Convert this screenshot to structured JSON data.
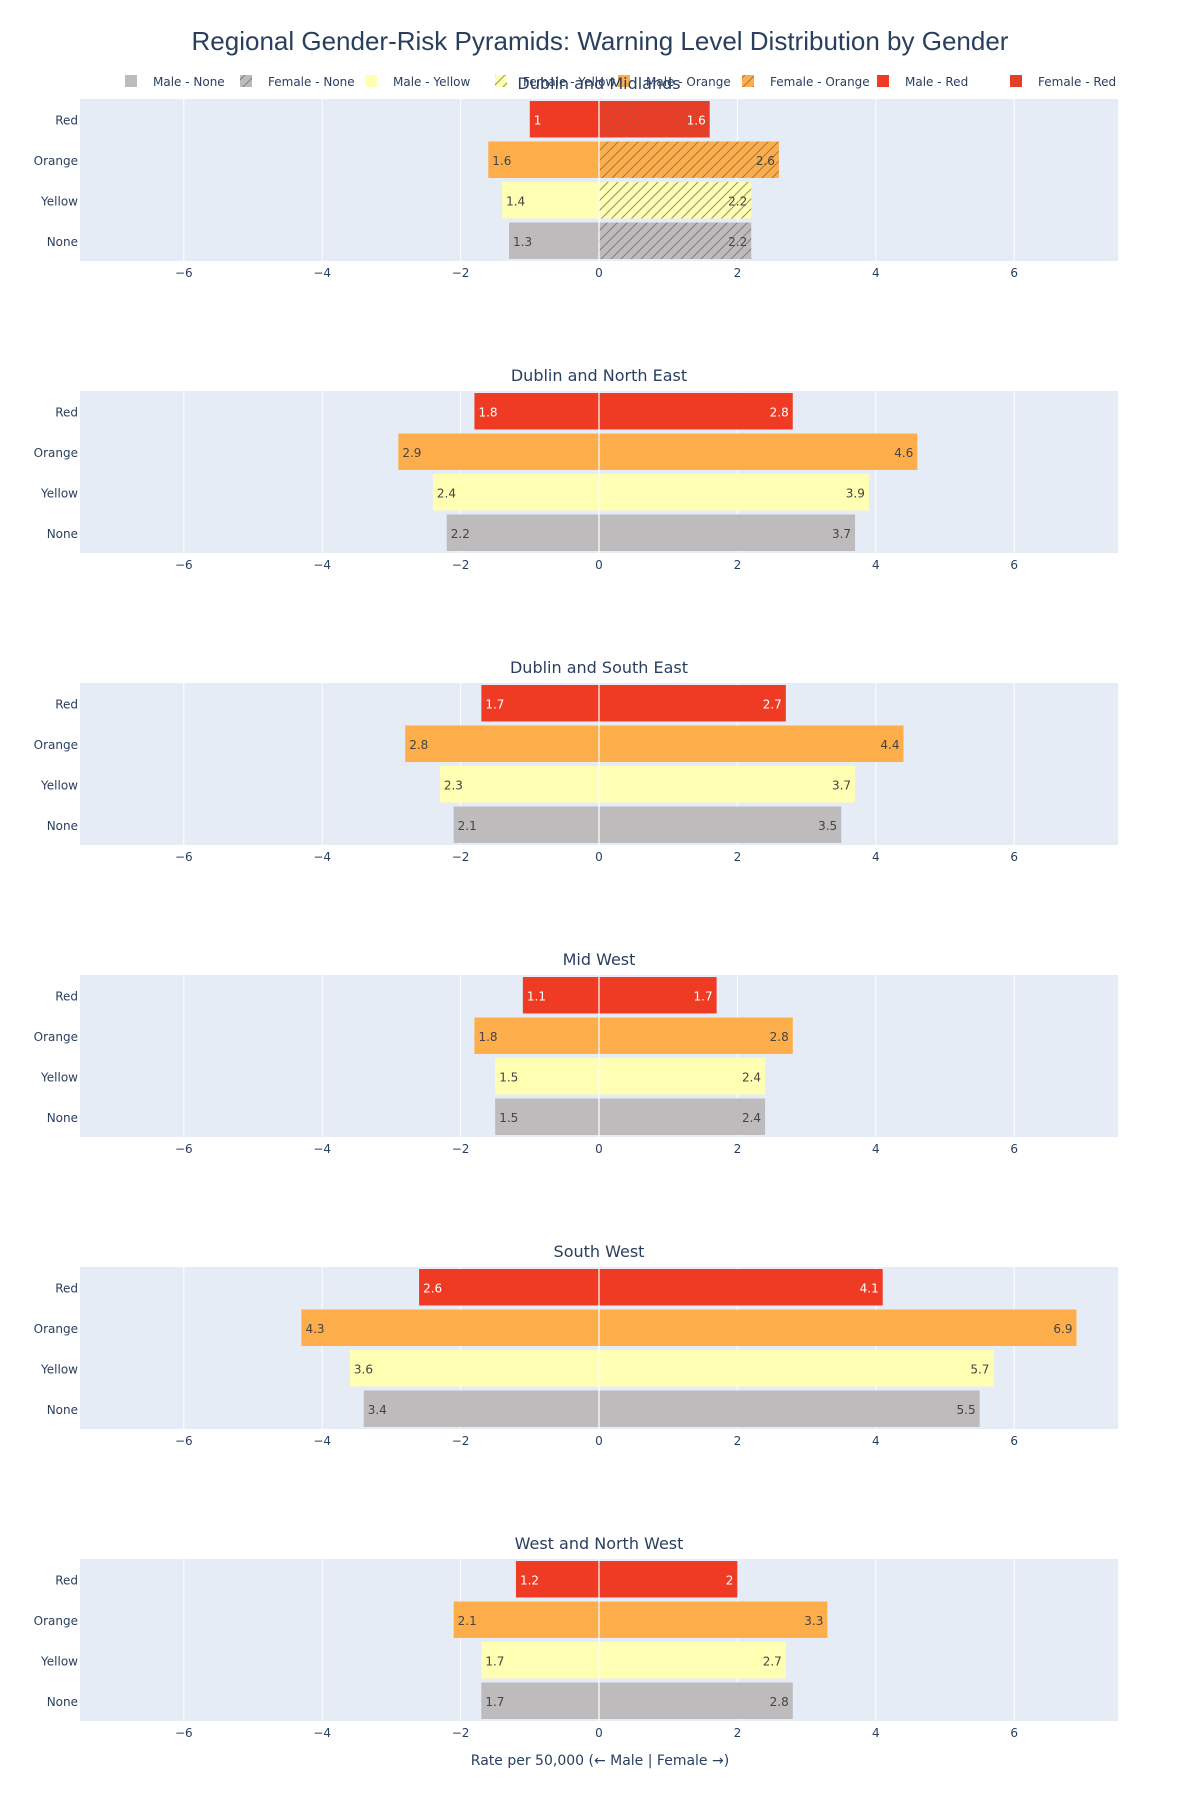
{
  "chart_data": {
    "type": "bar",
    "orientation": "horizontal-pyramid",
    "title": "Regional Gender-Risk Pyramids: Warning Level Distribution by Gender",
    "xlabel": "Rate per 50,000 (← Male | Female →)",
    "xlim": [
      -7.5,
      7.5
    ],
    "xticks": [
      -6,
      -4,
      -2,
      0,
      2,
      4,
      6
    ],
    "xtick_labels": [
      "−6",
      "−4",
      "−2",
      "0",
      "2",
      "4",
      "6"
    ],
    "grid": true,
    "legend_placement": "top",
    "categories": [
      "Red",
      "Orange",
      "Yellow",
      "None"
    ],
    "colors": {
      "None": "#bdbbbb",
      "Yellow": "#ffffb3",
      "Orange": "#fdae4b",
      "Red": "#ef3b23",
      "plot_bg": "#e5ecf6",
      "text": "#2a3f5f"
    },
    "legend": [
      {
        "name": "Male - None",
        "level": "None",
        "gender": "male"
      },
      {
        "name": "Female - None",
        "level": "None",
        "gender": "female"
      },
      {
        "name": "Male - Yellow",
        "level": "Yellow",
        "gender": "male"
      },
      {
        "name": "Female - Yellow",
        "level": "Yellow",
        "gender": "female"
      },
      {
        "name": "Male - Orange",
        "level": "Orange",
        "gender": "male"
      },
      {
        "name": "Female - Orange",
        "level": "Orange",
        "gender": "female"
      },
      {
        "name": "Male - Red",
        "level": "Red",
        "gender": "male"
      },
      {
        "name": "Female - Red",
        "level": "Red",
        "gender": "female"
      }
    ],
    "panels": [
      {
        "region": "Dublin and Midlands",
        "hatched_female": true,
        "male": {
          "Red": 1,
          "Orange": 1.6,
          "Yellow": 1.4,
          "None": 1.3
        },
        "female": {
          "Red": 1.6,
          "Orange": 2.6,
          "Yellow": 2.2,
          "None": 2.2
        }
      },
      {
        "region": "Dublin and North East",
        "hatched_female": false,
        "male": {
          "Red": 1.8,
          "Orange": 2.9,
          "Yellow": 2.4,
          "None": 2.2
        },
        "female": {
          "Red": 2.8,
          "Orange": 4.6,
          "Yellow": 3.9,
          "None": 3.7
        }
      },
      {
        "region": "Dublin and South East",
        "hatched_female": false,
        "male": {
          "Red": 1.7,
          "Orange": 2.8,
          "Yellow": 2.3,
          "None": 2.1
        },
        "female": {
          "Red": 2.7,
          "Orange": 4.4,
          "Yellow": 3.7,
          "None": 3.5
        }
      },
      {
        "region": "Mid West",
        "hatched_female": false,
        "male": {
          "Red": 1.1,
          "Orange": 1.8,
          "Yellow": 1.5,
          "None": 1.5
        },
        "female": {
          "Red": 1.7,
          "Orange": 2.8,
          "Yellow": 2.4,
          "None": 2.4
        }
      },
      {
        "region": "South West",
        "hatched_female": false,
        "male": {
          "Red": 2.6,
          "Orange": 4.3,
          "Yellow": 3.6,
          "None": 3.4
        },
        "female": {
          "Red": 4.1,
          "Orange": 6.9,
          "Yellow": 5.7,
          "None": 5.5
        }
      },
      {
        "region": "West and North West",
        "hatched_female": false,
        "male": {
          "Red": 1.2,
          "Orange": 2.1,
          "Yellow": 1.7,
          "None": 1.7
        },
        "female": {
          "Red": 2,
          "Orange": 3.3,
          "Yellow": 2.7,
          "None": 2.8
        }
      }
    ]
  }
}
